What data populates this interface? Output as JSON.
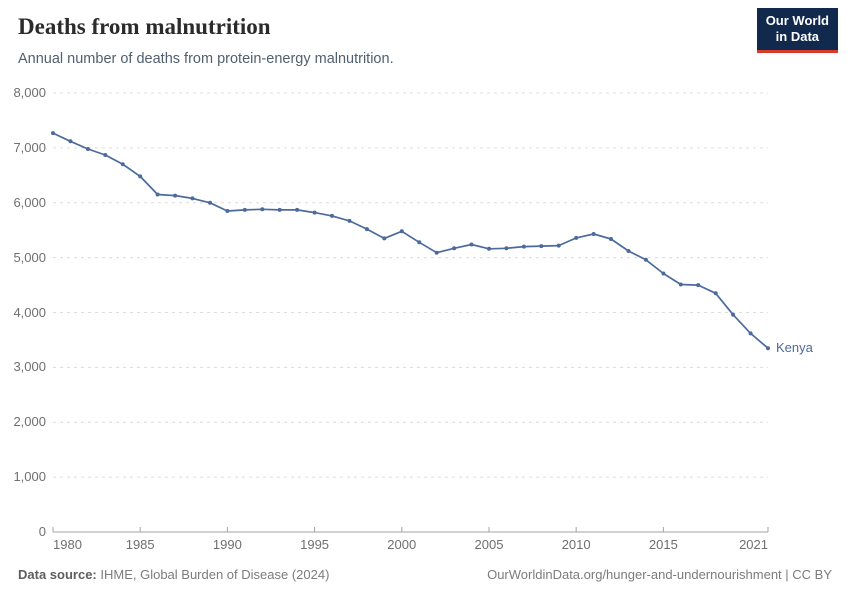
{
  "header": {
    "title": "Deaths from malnutrition",
    "subtitle": "Annual number of deaths from protein-energy malnutrition.",
    "logo": {
      "line1": "Our World",
      "line2": "in Data",
      "bg_color": "#12294e",
      "accent_color": "#d93a2d"
    }
  },
  "chart_data": {
    "type": "line",
    "title": "Deaths from malnutrition",
    "subtitle": "Annual number of deaths from protein-energy malnutrition.",
    "xlabel": "",
    "ylabel": "",
    "xlim": [
      1980,
      2021
    ],
    "ylim": [
      0,
      8000
    ],
    "grid": "horizontal dashed",
    "legend_position": "end-of-line label",
    "x_ticks": [
      1980,
      1985,
      1990,
      1995,
      2000,
      2005,
      2010,
      2015,
      2021
    ],
    "y_ticks": [
      0,
      1000,
      2000,
      3000,
      4000,
      5000,
      6000,
      7000,
      8000
    ],
    "y_tick_labels": [
      "0",
      "1,000",
      "2,000",
      "3,000",
      "4,000",
      "5,000",
      "6,000",
      "7,000",
      "8,000"
    ],
    "end_label": "Kenya",
    "series": [
      {
        "name": "Kenya",
        "color": "#4c6a9c",
        "x": [
          1980,
          1981,
          1982,
          1983,
          1984,
          1985,
          1986,
          1987,
          1988,
          1989,
          1990,
          1991,
          1992,
          1993,
          1994,
          1995,
          1996,
          1997,
          1998,
          1999,
          2000,
          2001,
          2002,
          2003,
          2004,
          2005,
          2006,
          2007,
          2008,
          2009,
          2010,
          2011,
          2012,
          2013,
          2014,
          2015,
          2016,
          2017,
          2018,
          2019,
          2020,
          2021
        ],
        "values": [
          7270,
          7120,
          6980,
          6870,
          6700,
          6480,
          6150,
          6130,
          6080,
          6000,
          5850,
          5870,
          5880,
          5870,
          5870,
          5820,
          5760,
          5670,
          5520,
          5350,
          5480,
          5280,
          5090,
          5170,
          5240,
          5160,
          5170,
          5200,
          5210,
          5220,
          5360,
          5430,
          5340,
          5120,
          4960,
          4710,
          4510,
          4500,
          4350,
          3960,
          3620,
          3350
        ]
      }
    ]
  },
  "footer": {
    "source_label": "Data source:",
    "source_text": " IHME, Global Burden of Disease (2024)",
    "link_text": "OurWorldinData.org/hunger-and-undernourishment | CC BY"
  }
}
